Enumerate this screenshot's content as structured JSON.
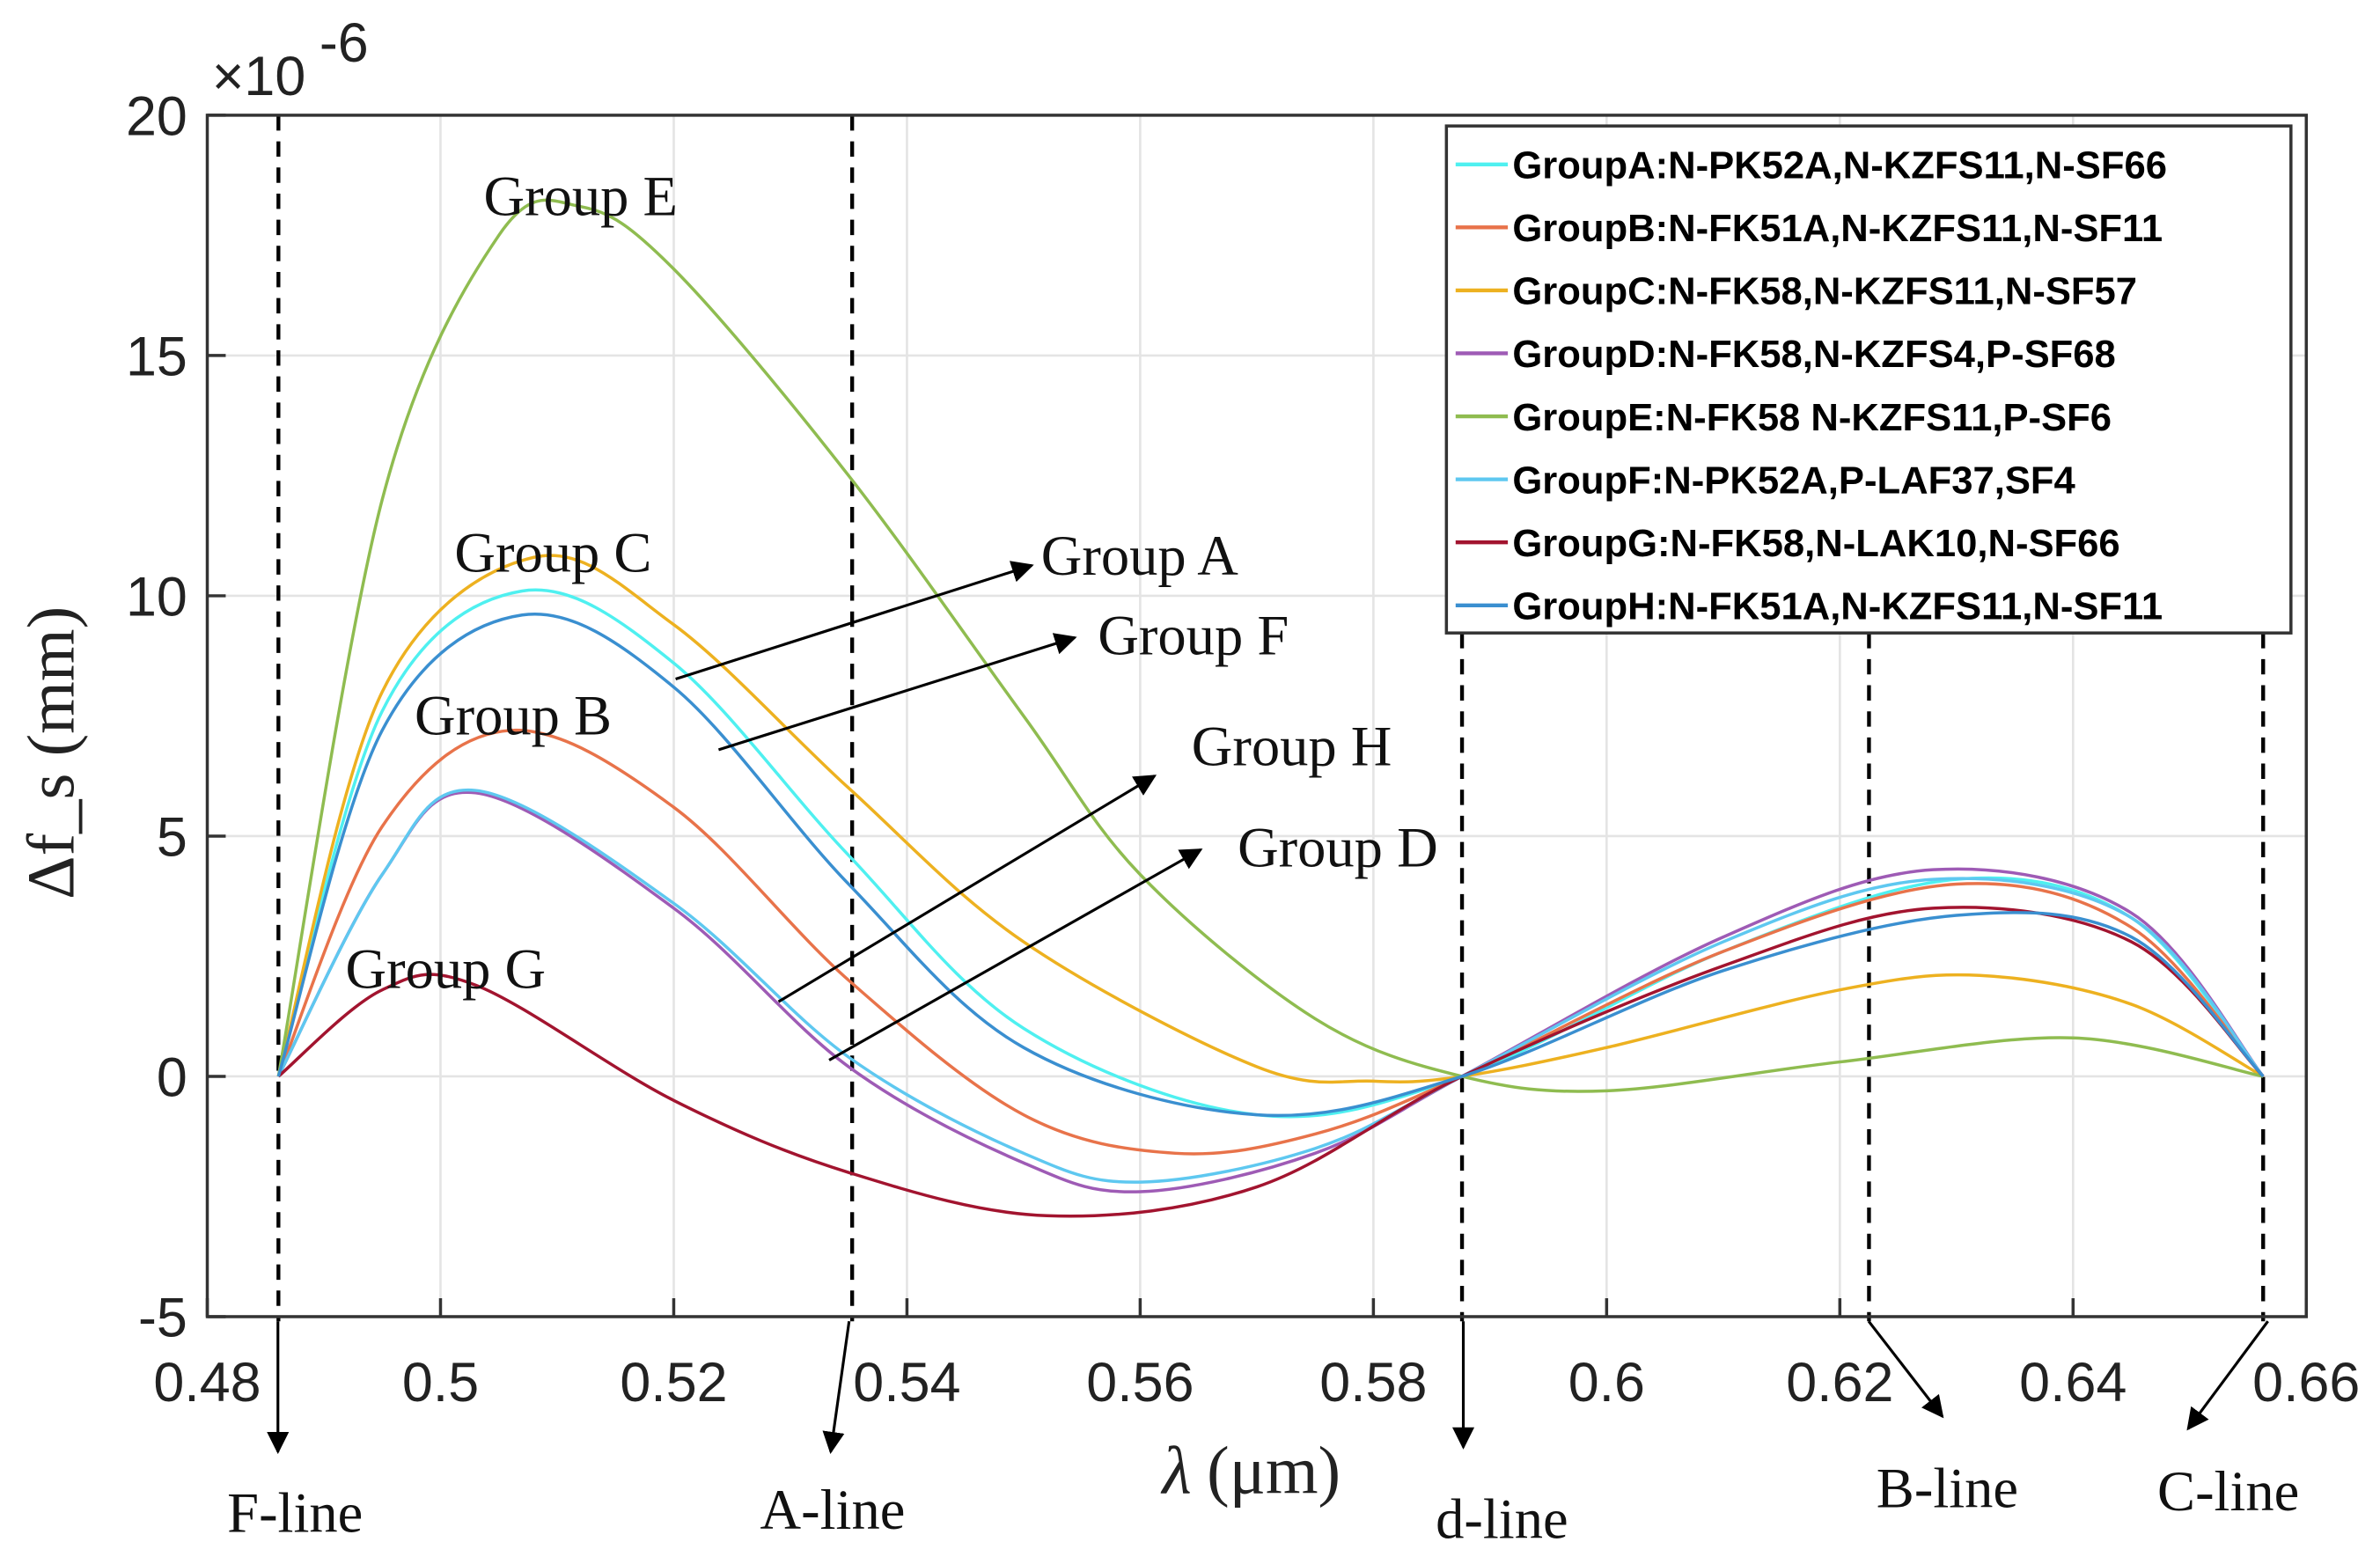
{
  "chart_data": {
    "type": "line",
    "title": "",
    "xlabel": "λ (μm)",
    "ylabel": "Δf_s (mm)",
    "ylabel_main": "Δ",
    "ylabel_f": "f",
    "ylabel_sub": "s",
    "ylabel_unit": "(mm)",
    "xlabel_sym": "λ",
    "xlabel_unit": "(μm)",
    "y_multiplier": "×10",
    "y_multiplier_exp": "-6",
    "xlim": [
      0.48,
      0.66
    ],
    "ylim": [
      -5,
      20
    ],
    "grid": true,
    "legend_position": "top-right",
    "xticks": [
      0.48,
      0.5,
      0.52,
      0.54,
      0.56,
      0.58,
      0.6,
      0.62,
      0.64,
      0.66
    ],
    "xtick_labels": [
      "0.48",
      "0.5",
      "0.52",
      "0.54",
      "0.56",
      "0.58",
      "0.6",
      "0.62",
      "0.64",
      "0.66"
    ],
    "yticks": [
      -5,
      0,
      5,
      10,
      15,
      20
    ],
    "ytick_labels": [
      "-5",
      "0",
      "5",
      "10",
      "15",
      "20"
    ],
    "reference_lines": [
      {
        "label": "F-line",
        "x": 0.4861
      },
      {
        "label": "A-line",
        "x": 0.5353
      },
      {
        "label": "d-line",
        "x": 0.5876
      },
      {
        "label": "B-line",
        "x": 0.6225
      },
      {
        "label": "C-line",
        "x": 0.6563
      }
    ],
    "series": [
      {
        "name": "GroupA:N-PK52A,N-KZFS11,N-SF66",
        "color": "#4ff0f0",
        "points": [
          [
            0.4861,
            0
          ],
          [
            0.495,
            7.6
          ],
          [
            0.507,
            10.1
          ],
          [
            0.52,
            8.6
          ],
          [
            0.535,
            4.6
          ],
          [
            0.55,
            1.0
          ],
          [
            0.57,
            -0.8
          ],
          [
            0.5876,
            0
          ],
          [
            0.61,
            2.6
          ],
          [
            0.63,
            4.1
          ],
          [
            0.645,
            3.3
          ],
          [
            0.6563,
            0
          ]
        ]
      },
      {
        "name": "GroupB:N-FK51A,N-KZFS11,N-SF11",
        "color": "#e8734a",
        "points": [
          [
            0.4861,
            0
          ],
          [
            0.495,
            5.2
          ],
          [
            0.506,
            7.2
          ],
          [
            0.52,
            5.6
          ],
          [
            0.535,
            2.0
          ],
          [
            0.55,
            -0.8
          ],
          [
            0.563,
            -1.6
          ],
          [
            0.575,
            -1.2
          ],
          [
            0.5876,
            0
          ],
          [
            0.61,
            2.6
          ],
          [
            0.63,
            4.0
          ],
          [
            0.645,
            3.1
          ],
          [
            0.6563,
            0
          ]
        ]
      },
      {
        "name": "GroupC:N-FK58,N-KZFS11,N-SF57",
        "color": "#edb120",
        "points": [
          [
            0.4861,
            0
          ],
          [
            0.495,
            8.0
          ],
          [
            0.508,
            10.8
          ],
          [
            0.52,
            9.4
          ],
          [
            0.535,
            6.0
          ],
          [
            0.55,
            2.8
          ],
          [
            0.57,
            0.2
          ],
          [
            0.58,
            -0.1
          ],
          [
            0.5876,
            0
          ],
          [
            0.6,
            0.6
          ],
          [
            0.62,
            1.8
          ],
          [
            0.632,
            2.1
          ],
          [
            0.645,
            1.5
          ],
          [
            0.6563,
            0
          ]
        ]
      },
      {
        "name": "GroupD:N-FK58,N-KZFS4,P-SF68",
        "color": "#9e5bb5",
        "points": [
          [
            0.4861,
            0
          ],
          [
            0.495,
            4.2
          ],
          [
            0.503,
            5.9
          ],
          [
            0.52,
            3.5
          ],
          [
            0.535,
            0.2
          ],
          [
            0.55,
            -1.8
          ],
          [
            0.56,
            -2.4
          ],
          [
            0.575,
            -1.6
          ],
          [
            0.5876,
            0
          ],
          [
            0.61,
            2.9
          ],
          [
            0.628,
            4.3
          ],
          [
            0.645,
            3.4
          ],
          [
            0.6563,
            0
          ]
        ]
      },
      {
        "name": "GroupE:N-FK58 N-KZFS11,P-SF6",
        "color": "#8fbc50",
        "points": [
          [
            0.4861,
            0
          ],
          [
            0.495,
            12.0
          ],
          [
            0.505,
            17.5
          ],
          [
            0.512,
            18.1
          ],
          [
            0.52,
            16.8
          ],
          [
            0.535,
            12.5
          ],
          [
            0.55,
            7.5
          ],
          [
            0.56,
            4.2
          ],
          [
            0.575,
            1.2
          ],
          [
            0.5876,
            0
          ],
          [
            0.6,
            -0.3
          ],
          [
            0.62,
            0.3
          ],
          [
            0.64,
            0.8
          ],
          [
            0.6563,
            0
          ]
        ]
      },
      {
        "name": "GroupF:N-PK52A,P-LAF37,SF4",
        "color": "#5ec8f0",
        "points": [
          [
            0.4861,
            0
          ],
          [
            0.495,
            4.2
          ],
          [
            0.503,
            5.95
          ],
          [
            0.52,
            3.6
          ],
          [
            0.535,
            0.4
          ],
          [
            0.55,
            -1.6
          ],
          [
            0.56,
            -2.2
          ],
          [
            0.575,
            -1.5
          ],
          [
            0.5876,
            0
          ],
          [
            0.61,
            2.8
          ],
          [
            0.628,
            4.1
          ],
          [
            0.645,
            3.3
          ],
          [
            0.6563,
            0
          ]
        ]
      },
      {
        "name": "GroupG:N-FK58,N-LAK10,N-SF66",
        "color": "#a2142f",
        "points": [
          [
            0.4861,
            0
          ],
          [
            0.495,
            1.8
          ],
          [
            0.503,
            1.9
          ],
          [
            0.52,
            -0.5
          ],
          [
            0.535,
            -2.0
          ],
          [
            0.552,
            -2.9
          ],
          [
            0.57,
            -2.3
          ],
          [
            0.5876,
            0
          ],
          [
            0.61,
            2.3
          ],
          [
            0.628,
            3.5
          ],
          [
            0.645,
            2.8
          ],
          [
            0.6563,
            0
          ]
        ]
      },
      {
        "name": "GroupH:N-FK51A,N-KZFS11,N-SF11",
        "color": "#3a8fd0",
        "points": [
          [
            0.4861,
            0
          ],
          [
            0.495,
            7.2
          ],
          [
            0.507,
            9.6
          ],
          [
            0.52,
            8.1
          ],
          [
            0.535,
            4.0
          ],
          [
            0.55,
            0.6
          ],
          [
            0.57,
            -0.8
          ],
          [
            0.5876,
            0
          ],
          [
            0.61,
            2.2
          ],
          [
            0.63,
            3.35
          ],
          [
            0.645,
            2.9
          ],
          [
            0.6563,
            0
          ]
        ]
      }
    ],
    "annotations": [
      "Group E",
      "Group C",
      "Group A",
      "Group F",
      "Group B",
      "Group H",
      "Group D",
      "Group G"
    ]
  }
}
